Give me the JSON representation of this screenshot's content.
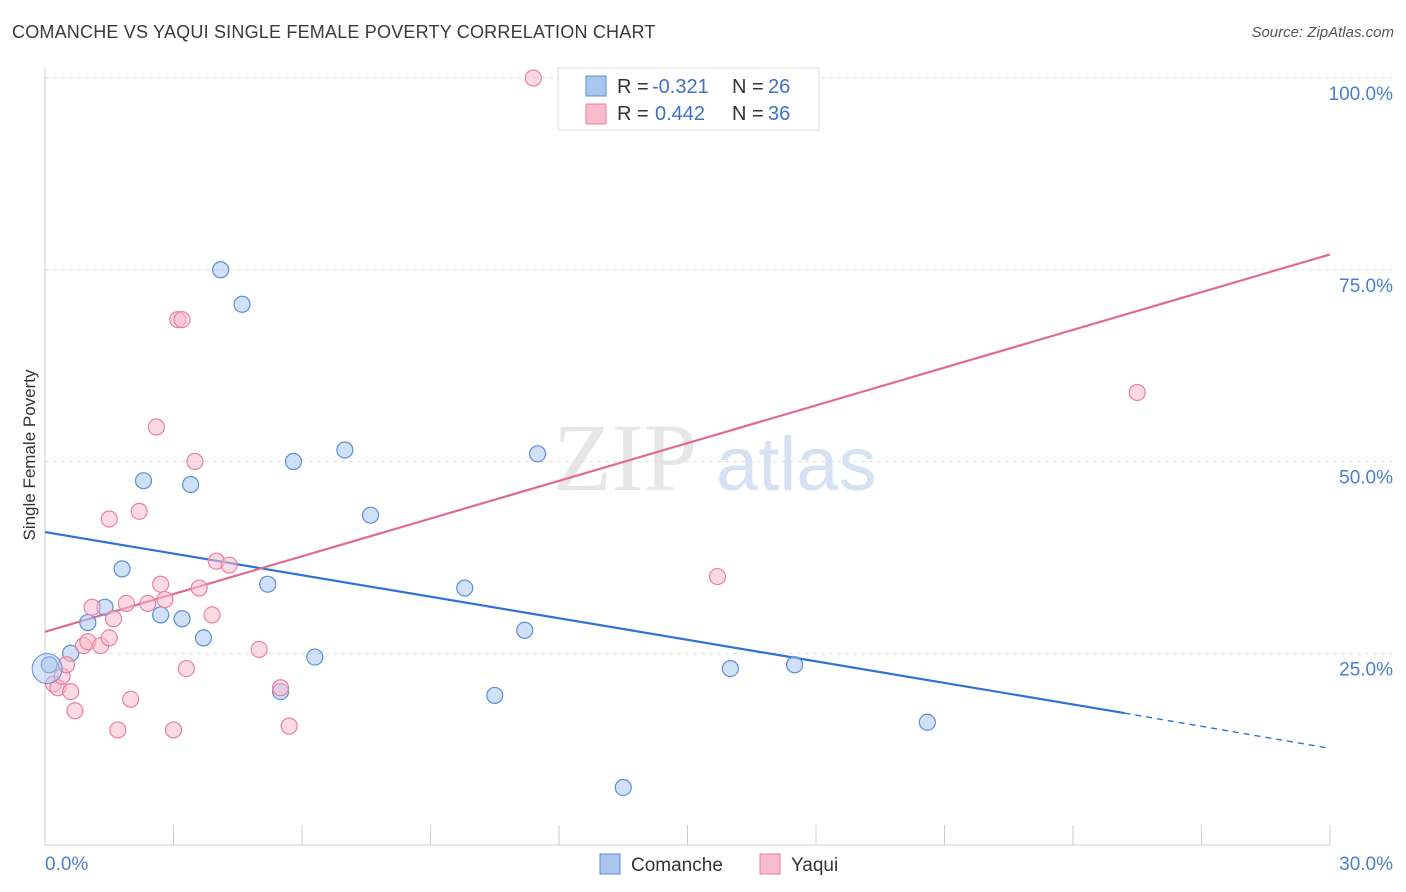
{
  "header": {
    "title": "COMANCHE VS YAQUI SINGLE FEMALE POVERTY CORRELATION CHART",
    "source": "Source: ZipAtlas.com"
  },
  "watermark": {
    "zip": "ZIP",
    "atlas": "atlas"
  },
  "chart_data": {
    "type": "scatter",
    "title": "COMANCHE VS YAQUI SINGLE FEMALE POVERTY CORRELATION CHART",
    "xlabel": "",
    "ylabel": "Single Female Poverty",
    "xlim": [
      0,
      30
    ],
    "ylim": [
      0,
      101
    ],
    "x_tick_labels": [
      "0.0%",
      "30.0%"
    ],
    "y_ticks": [
      25,
      50,
      75,
      100
    ],
    "y_tick_labels": [
      "25.0%",
      "50.0%",
      "75.0%",
      "100.0%"
    ],
    "grid": true,
    "legend_position": "top-center",
    "series": [
      {
        "name": "Comanche",
        "color": "#a9c6ef",
        "stroke": "#5b8fd6",
        "line_color": "#2f72d6",
        "R": "-0.321",
        "N": "26",
        "trend": {
          "x0": 0,
          "y0": 40.8,
          "x1": 25.2,
          "y1": 17.2,
          "dash_to_x": 30,
          "dash_to_y": 12.6
        },
        "points": [
          [
            0.1,
            23.5
          ],
          [
            0.6,
            25.0
          ],
          [
            1.0,
            29.0
          ],
          [
            1.4,
            31.0
          ],
          [
            1.8,
            36.0
          ],
          [
            2.3,
            47.5
          ],
          [
            2.7,
            30.0
          ],
          [
            3.2,
            29.5
          ],
          [
            3.4,
            47.0
          ],
          [
            3.7,
            27.0
          ],
          [
            4.1,
            75.0
          ],
          [
            4.6,
            70.5
          ],
          [
            5.2,
            34.0
          ],
          [
            5.5,
            20.0
          ],
          [
            5.8,
            50.0
          ],
          [
            6.3,
            24.5
          ],
          [
            7.0,
            51.5
          ],
          [
            7.6,
            43.0
          ],
          [
            9.8,
            33.5
          ],
          [
            10.5,
            19.5
          ],
          [
            11.2,
            28.0
          ],
          [
            11.5,
            51.0
          ],
          [
            13.5,
            7.5
          ],
          [
            16.0,
            23.0
          ],
          [
            17.5,
            23.5
          ],
          [
            20.6,
            16.0
          ]
        ]
      },
      {
        "name": "Yaqui",
        "color": "#f7bccd",
        "stroke": "#e8819f",
        "line_color": "#e06a92",
        "R": "0.442",
        "N": "36",
        "trend": {
          "x0": 0,
          "y0": 27.8,
          "x1": 30,
          "y1": 77.0
        },
        "points": [
          [
            0.2,
            21.0
          ],
          [
            0.3,
            20.5
          ],
          [
            0.4,
            22.0
          ],
          [
            0.5,
            23.5
          ],
          [
            0.6,
            20.0
          ],
          [
            0.7,
            17.5
          ],
          [
            0.9,
            26.0
          ],
          [
            1.0,
            26.5
          ],
          [
            1.1,
            31.0
          ],
          [
            1.3,
            26.0
          ],
          [
            1.5,
            27.0
          ],
          [
            1.6,
            29.5
          ],
          [
            1.5,
            42.5
          ],
          [
            1.9,
            31.5
          ],
          [
            2.0,
            19.0
          ],
          [
            2.2,
            43.5
          ],
          [
            2.4,
            31.5
          ],
          [
            2.6,
            54.5
          ],
          [
            2.7,
            34.0
          ],
          [
            3.0,
            15.0
          ],
          [
            3.1,
            68.5
          ],
          [
            3.2,
            68.5
          ],
          [
            3.3,
            23.0
          ],
          [
            3.5,
            50.0
          ],
          [
            3.6,
            33.5
          ],
          [
            3.9,
            30.0
          ],
          [
            4.0,
            37.0
          ],
          [
            4.3,
            36.5
          ],
          [
            5.0,
            25.5
          ],
          [
            5.5,
            20.5
          ],
          [
            5.7,
            15.5
          ],
          [
            1.7,
            15.0
          ],
          [
            2.8,
            32.0
          ],
          [
            11.4,
            100.0
          ],
          [
            15.7,
            35.0
          ],
          [
            25.5,
            59.0
          ]
        ]
      }
    ]
  },
  "legend": {
    "r_label": "R =",
    "n_label": "N =",
    "rows": [
      {
        "r": "-0.321",
        "n": "26"
      },
      {
        "r": "0.442",
        "n": "36"
      }
    ]
  },
  "bottom_legend": [
    "Comanche",
    "Yaqui"
  ]
}
